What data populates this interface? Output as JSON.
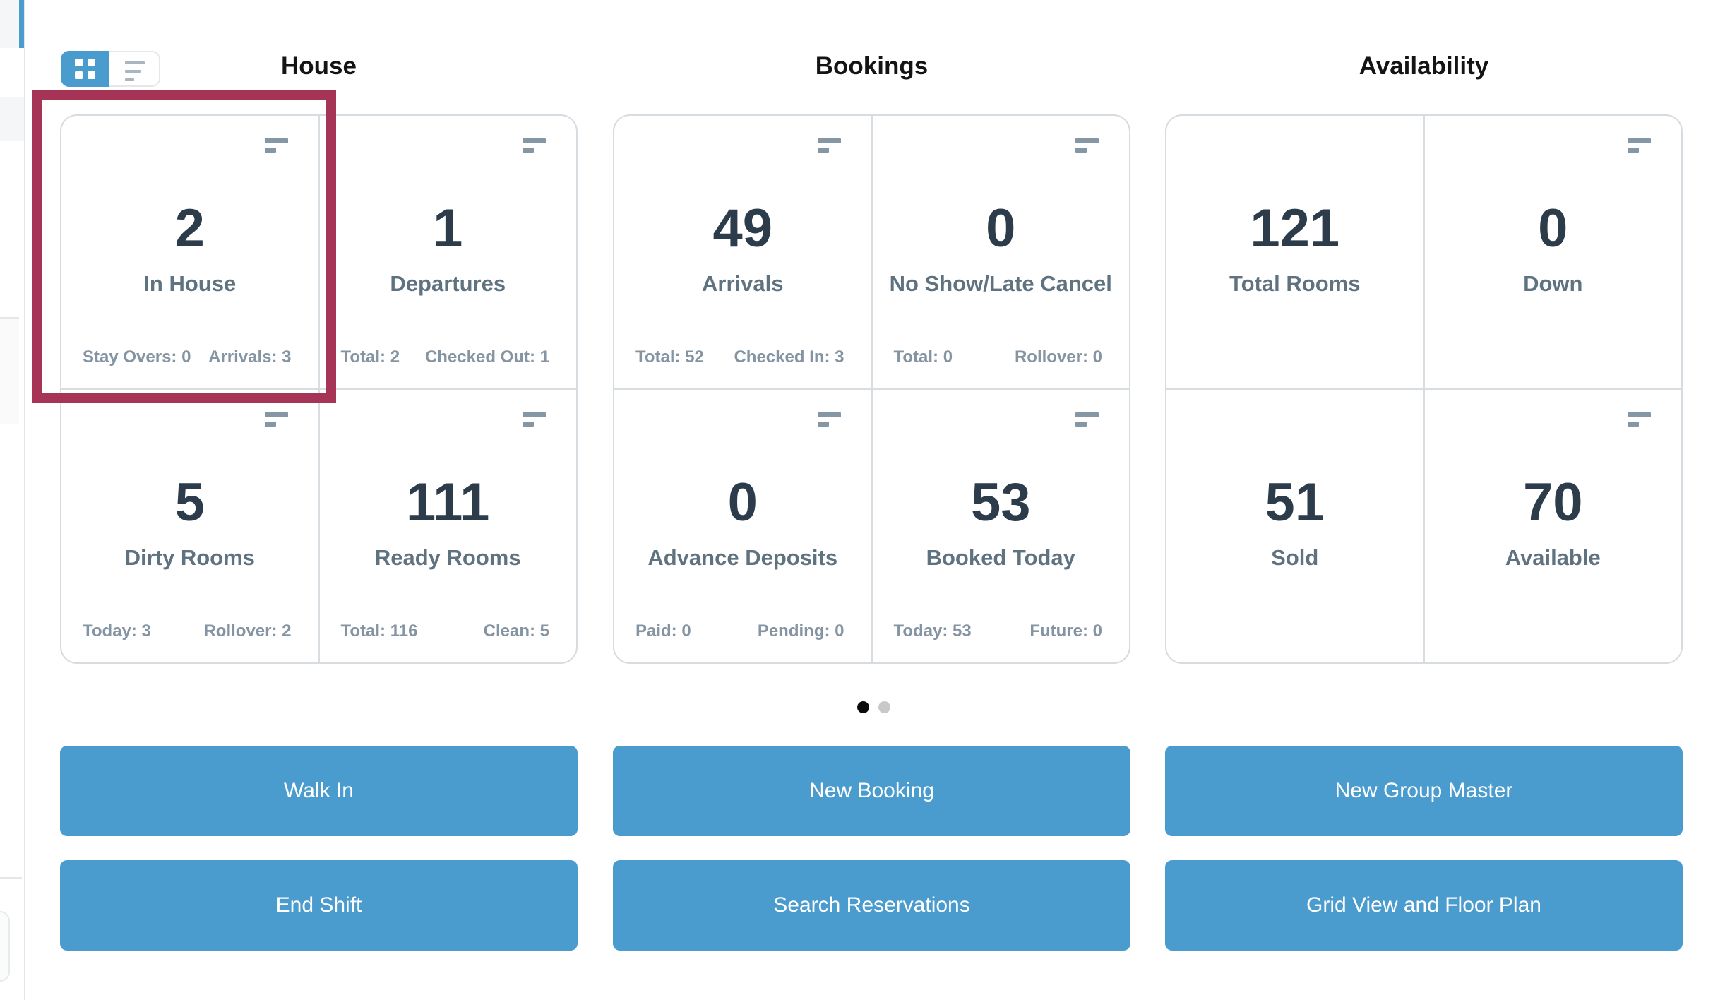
{
  "view_toggle": {
    "grid_icon": "grid-view-icon",
    "list_icon": "list-view-icon",
    "active": "grid"
  },
  "sections": [
    {
      "title": "House",
      "cells": [
        {
          "value": "2",
          "label": "In House",
          "foot_left": "Stay Overs: 0",
          "foot_right": "Arrivals: 3"
        },
        {
          "value": "1",
          "label": "Departures",
          "foot_left": "Total: 2",
          "foot_right": "Checked Out: 1"
        },
        {
          "value": "5",
          "label": "Dirty Rooms",
          "foot_left": "Today: 3",
          "foot_right": "Rollover: 2"
        },
        {
          "value": "111",
          "label": "Ready Rooms",
          "foot_left": "Total: 116",
          "foot_right": "Clean: 5"
        }
      ]
    },
    {
      "title": "Bookings",
      "cells": [
        {
          "value": "49",
          "label": "Arrivals",
          "foot_left": "Total: 52",
          "foot_right": "Checked In: 3"
        },
        {
          "value": "0",
          "label": "No Show/Late Cancel",
          "foot_left": "Total: 0",
          "foot_right": "Rollover: 0"
        },
        {
          "value": "0",
          "label": "Advance Deposits",
          "foot_left": "Paid: 0",
          "foot_right": "Pending: 0"
        },
        {
          "value": "53",
          "label": "Booked Today",
          "foot_left": "Today: 53",
          "foot_right": "Future: 0"
        }
      ]
    },
    {
      "title": "Availability",
      "cells": [
        {
          "value": "121",
          "label": "Total Rooms"
        },
        {
          "value": "0",
          "label": "Down"
        },
        {
          "value": "51",
          "label": "Sold"
        },
        {
          "value": "70",
          "label": "Available"
        }
      ]
    }
  ],
  "pagination": {
    "count": 2,
    "active_index": 0
  },
  "actions": {
    "walk_in": "Walk In",
    "end_shift": "End Shift",
    "new_booking": "New Booking",
    "search_reservations": "Search Reservations",
    "new_group_master": "New Group Master",
    "grid_view_floor_plan": "Grid View and Floor Plan"
  },
  "icons": {
    "card_menu": "two stacked horizontal bars",
    "grid_view": "2x2 squares",
    "list_view": "three shrinking lines"
  },
  "colors": {
    "accent_blue": "#4A9BCE",
    "highlight_crimson": "#A63456",
    "stat_number": "#2D3C4A",
    "stat_label": "#5F7280",
    "stat_footnote": "#8494A2",
    "panel_border": "#D7DCE0",
    "dot_active": "#0B0B0B",
    "dot_inactive": "#C8C8C8"
  }
}
